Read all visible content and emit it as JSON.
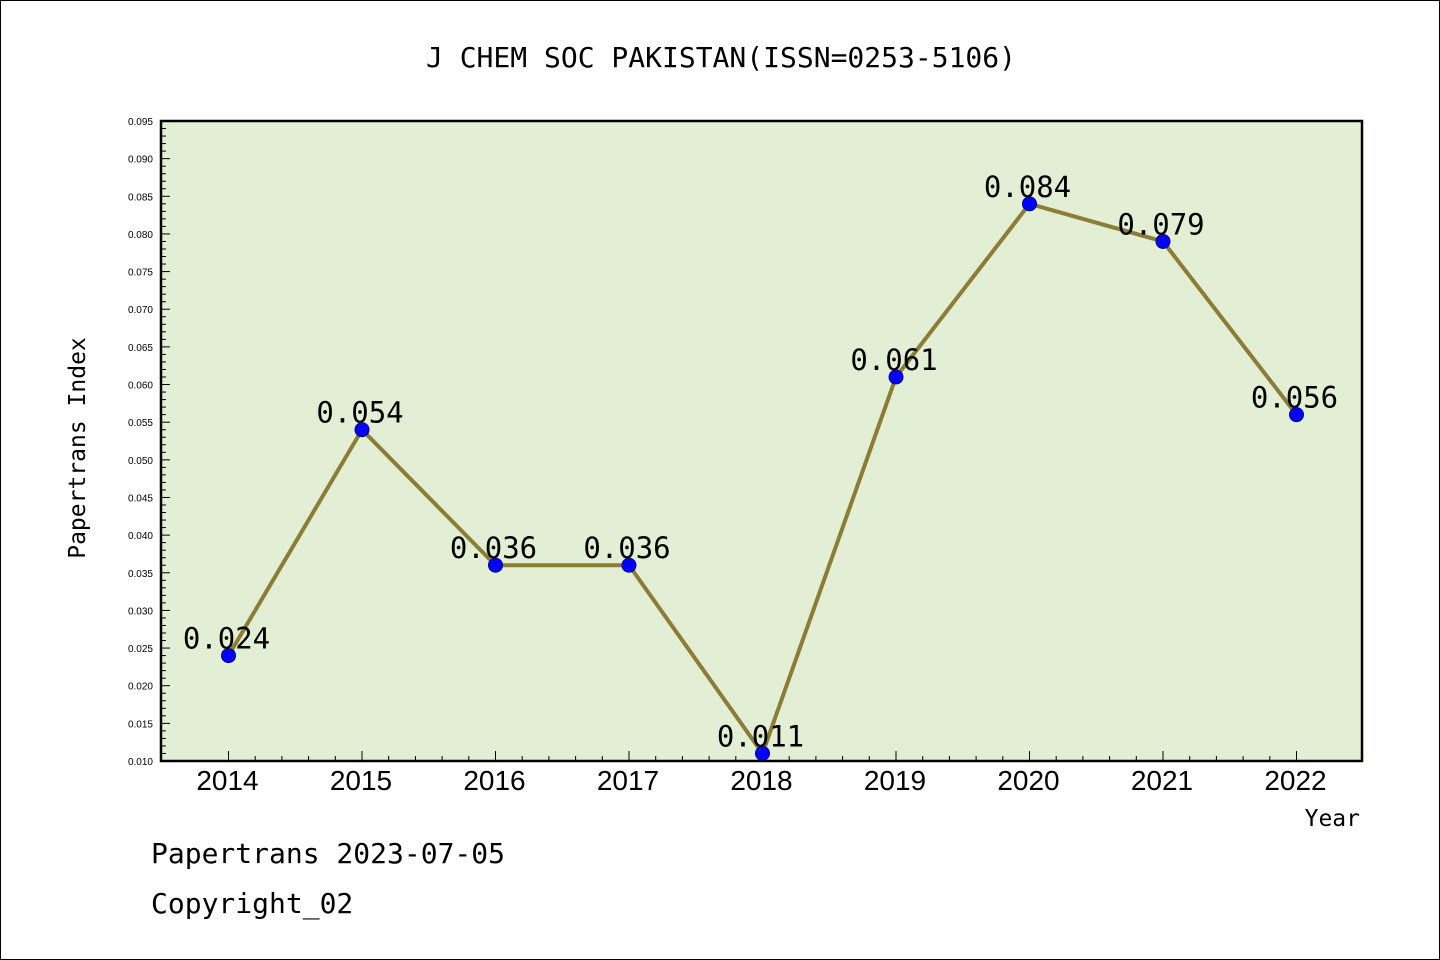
{
  "chart_data": {
    "type": "line",
    "title": "J CHEM SOC PAKISTAN(ISSN=0253-5106)",
    "xlabel": "Year",
    "ylabel": "Papertrans Index",
    "categories": [
      "2014",
      "2015",
      "2016",
      "2017",
      "2018",
      "2019",
      "2020",
      "2021",
      "2022"
    ],
    "series": [
      {
        "values": [
          0.024,
          0.054,
          0.036,
          0.036,
          0.011,
          0.061,
          0.084,
          0.079,
          0.056
        ]
      }
    ],
    "data_labels": [
      "0.024",
      "0.054",
      "0.036",
      "0.036",
      "0.011",
      "0.061",
      "0.084",
      "0.079",
      "0.056"
    ],
    "ylim": [
      0.01,
      0.095
    ],
    "yticks": [
      "0.010",
      "0.015",
      "0.020",
      "0.025",
      "0.030",
      "0.035",
      "0.040",
      "0.045",
      "0.050",
      "0.055",
      "0.060",
      "0.065",
      "0.070",
      "0.075",
      "0.080",
      "0.085",
      "0.090",
      "0.095"
    ],
    "grid": false,
    "legend": "none",
    "colors": {
      "plot_bg": "#e2efd4",
      "line": "#8b7d35",
      "marker": "#0000ff"
    }
  },
  "footer": {
    "date": "Papertrans 2023-07-05",
    "copyright": "Copyright_02"
  }
}
